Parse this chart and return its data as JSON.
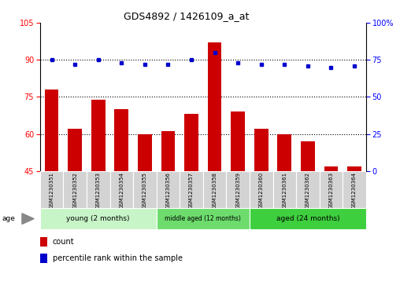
{
  "title": "GDS4892 / 1426109_a_at",
  "samples": [
    "GSM1230351",
    "GSM1230352",
    "GSM1230353",
    "GSM1230354",
    "GSM1230355",
    "GSM1230356",
    "GSM1230357",
    "GSM1230358",
    "GSM1230359",
    "GSM1230360",
    "GSM1230361",
    "GSM1230362",
    "GSM1230363",
    "GSM1230364"
  ],
  "count_values": [
    78,
    62,
    74,
    70,
    60,
    61,
    68,
    97,
    69,
    62,
    60,
    57,
    47,
    47
  ],
  "percentile_values": [
    75,
    72,
    75,
    73,
    72,
    72,
    75,
    80,
    73,
    72,
    72,
    71,
    70,
    71
  ],
  "ylim_left": [
    45,
    105
  ],
  "ylim_right": [
    0,
    100
  ],
  "yticks_left": [
    45,
    60,
    75,
    90,
    105
  ],
  "yticks_right": [
    0,
    25,
    50,
    75,
    100
  ],
  "ytick_labels_right": [
    "0",
    "25",
    "50",
    "75",
    "100%"
  ],
  "bar_color": "#cc0000",
  "dot_color": "#0000cc",
  "groups": [
    {
      "label": "young (2 months)",
      "start": 0,
      "end": 5,
      "color": "#c8f5c8"
    },
    {
      "label": "middle aged (12 months)",
      "start": 5,
      "end": 9,
      "color": "#6ddc6d"
    },
    {
      "label": "aged (24 months)",
      "start": 9,
      "end": 14,
      "color": "#3ecf3e"
    }
  ],
  "age_label": "age",
  "legend_count": "count",
  "legend_percentile": "percentile rank within the sample",
  "grid_color": "black",
  "background_color": "#ffffff",
  "tick_label_area_color": "#d3d3d3"
}
